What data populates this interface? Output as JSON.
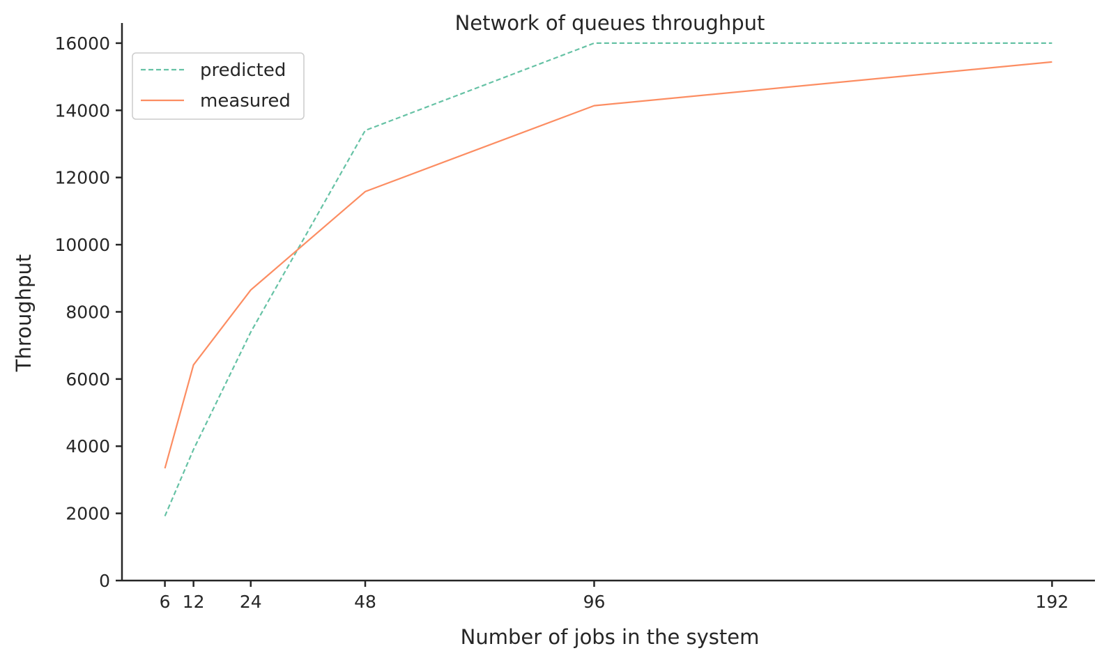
{
  "chart_data": {
    "type": "line",
    "title": "Network of queues throughput",
    "xlabel": "Number of jobs in the system",
    "ylabel": "Throughput",
    "x": [
      6,
      12,
      24,
      48,
      96,
      192
    ],
    "xticks": [
      "6",
      "12",
      "24",
      "48",
      "96",
      "192"
    ],
    "yticks": [
      "0",
      "2000",
      "4000",
      "6000",
      "8000",
      "10000",
      "12000",
      "14000",
      "16000"
    ],
    "xlim": [
      -3,
      201
    ],
    "ylim": [
      0,
      16600
    ],
    "grid": false,
    "legend": "top-left",
    "series": [
      {
        "name": "predicted",
        "style": "dashed",
        "color": "#66c2a5",
        "values": [
          1920,
          3900,
          7400,
          13400,
          16000,
          16000
        ]
      },
      {
        "name": "measured",
        "style": "solid",
        "color": "#fc8d62",
        "values": [
          3340,
          6420,
          8650,
          11580,
          14140,
          15440
        ]
      }
    ]
  }
}
